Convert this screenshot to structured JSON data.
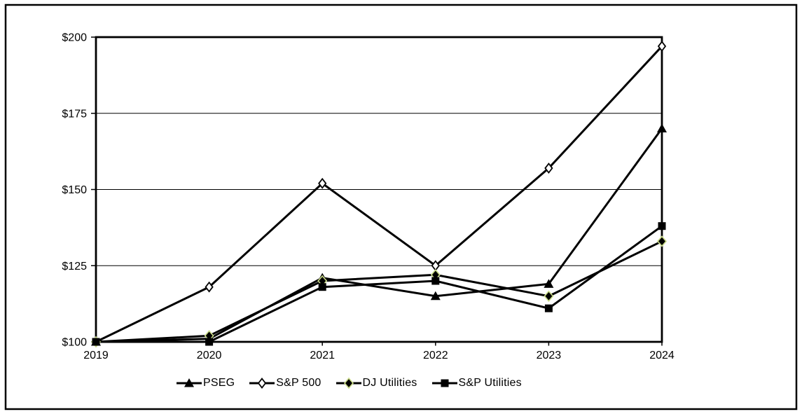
{
  "chart_data": {
    "type": "line",
    "title": "",
    "xlabel": "",
    "ylabel": "",
    "categories": [
      "2019",
      "2020",
      "2021",
      "2022",
      "2023",
      "2024"
    ],
    "series": [
      {
        "name": "PSEG",
        "marker": "filled-triangle",
        "color": "#000000",
        "values": [
          100,
          101,
          121,
          115,
          119,
          170
        ]
      },
      {
        "name": "S&P 500",
        "marker": "open-diamond",
        "color": "#000000",
        "values": [
          100,
          118,
          152,
          125,
          157,
          197
        ]
      },
      {
        "name": "DJ Utilities",
        "marker": "filled-diamond-green-edge",
        "color": "#000000",
        "marker_edge_color": "#cbdc8a",
        "values": [
          100,
          102,
          120,
          122,
          115,
          133
        ]
      },
      {
        "name": "S&P Utilities",
        "marker": "filled-square",
        "color": "#000000",
        "values": [
          100,
          100,
          118,
          120,
          111,
          138
        ]
      }
    ],
    "y_ticks": [
      {
        "value": 100,
        "label": "$100"
      },
      {
        "value": 125,
        "label": "$125"
      },
      {
        "value": 150,
        "label": "$150"
      },
      {
        "value": 175,
        "label": "$175"
      },
      {
        "value": 200,
        "label": "$200"
      }
    ],
    "ylim": [
      100,
      200
    ],
    "grid": "horizontal",
    "legend_position": "bottom",
    "frame": true
  },
  "colors": {
    "line": "#000000",
    "background": "#ffffff",
    "grid": "#000000",
    "dj_marker_edge": "#cbdc8a",
    "open_marker_fill": "#ffffff"
  }
}
